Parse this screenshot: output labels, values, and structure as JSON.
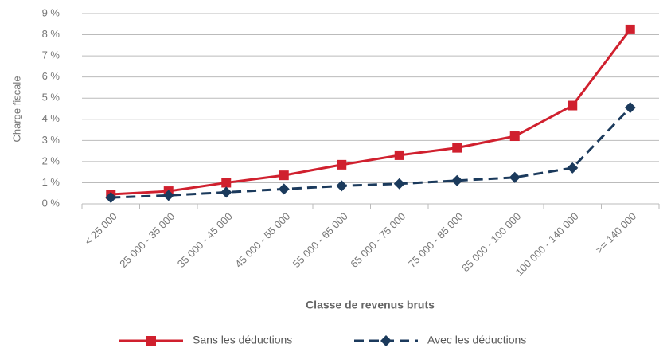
{
  "chart_data": {
    "type": "line",
    "x_label": "Classe de revenus bruts",
    "y_label": "Charge fiscale",
    "categories": [
      "< 25 000",
      "25 000 - 35 000",
      "35 000 - 45 000",
      "45 000 - 55 000",
      "55 000 - 65 000",
      "65 000 - 75 000",
      "75 000 - 85 000",
      "85 000 - 100 000",
      "100 000 - 140 000",
      ">= 140 000"
    ],
    "series": [
      {
        "name": "Sans les déductions",
        "color": "#d0202e",
        "dash": false,
        "marker": "square",
        "values": [
          0.45,
          0.6,
          1.0,
          1.35,
          1.85,
          2.3,
          2.65,
          3.2,
          4.65,
          8.25
        ]
      },
      {
        "name": "Avec les déductions",
        "color": "#1b3a5c",
        "dash": true,
        "marker": "diamond",
        "values": [
          0.3,
          0.4,
          0.55,
          0.7,
          0.85,
          0.95,
          1.1,
          1.25,
          1.7,
          4.55
        ]
      }
    ],
    "ylim": [
      0,
      9
    ],
    "yticks": [
      {
        "value": 0,
        "label": "0 %"
      },
      {
        "value": 1,
        "label": "1 %"
      },
      {
        "value": 2,
        "label": "2 %"
      },
      {
        "value": 3,
        "label": "3 %"
      },
      {
        "value": 4,
        "label": "4 %"
      },
      {
        "value": 5,
        "label": "5 %"
      },
      {
        "value": 6,
        "label": "6 %"
      },
      {
        "value": 7,
        "label": "7 %"
      },
      {
        "value": 8,
        "label": "8 %"
      },
      {
        "value": 9,
        "label": "9 %"
      }
    ],
    "grid": true
  }
}
